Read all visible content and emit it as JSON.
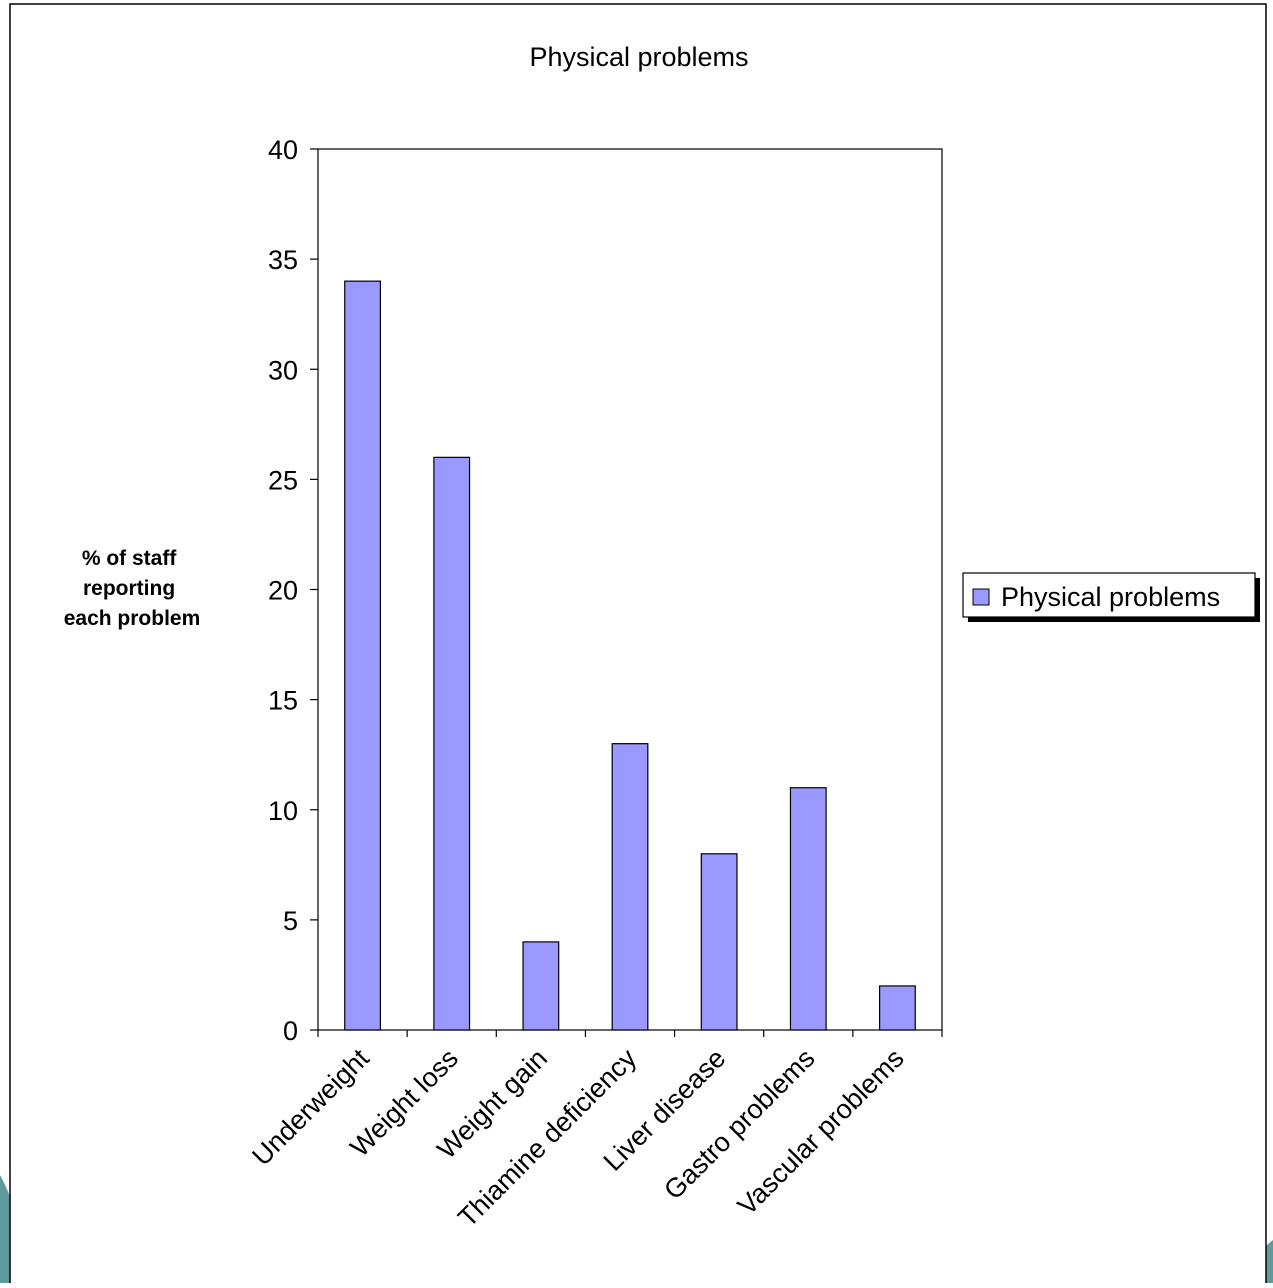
{
  "chart_data": {
    "type": "bar",
    "title": "Physical problems",
    "ylabel": "% of staff reporting each problem",
    "ylabel_lines": [
      "% of staff",
      "reporting",
      "each problem"
    ],
    "xlabel": "",
    "categories": [
      "Underweight",
      "Weight loss",
      "Weight gain",
      "Thiamine deficiency",
      "Liver disease",
      "Gastro problems",
      "Vascular problems"
    ],
    "series": [
      {
        "name": "Physical problems",
        "values": [
          34,
          26,
          4,
          13,
          8,
          11,
          2
        ]
      }
    ],
    "ylim": [
      0,
      40
    ],
    "yticks": [
      0,
      5,
      10,
      15,
      20,
      25,
      30,
      35,
      40
    ],
    "grid": false,
    "legend": "right",
    "bar_color": "#9999ff",
    "border_color": "#000000",
    "accent_color": "#4f8f8f"
  }
}
